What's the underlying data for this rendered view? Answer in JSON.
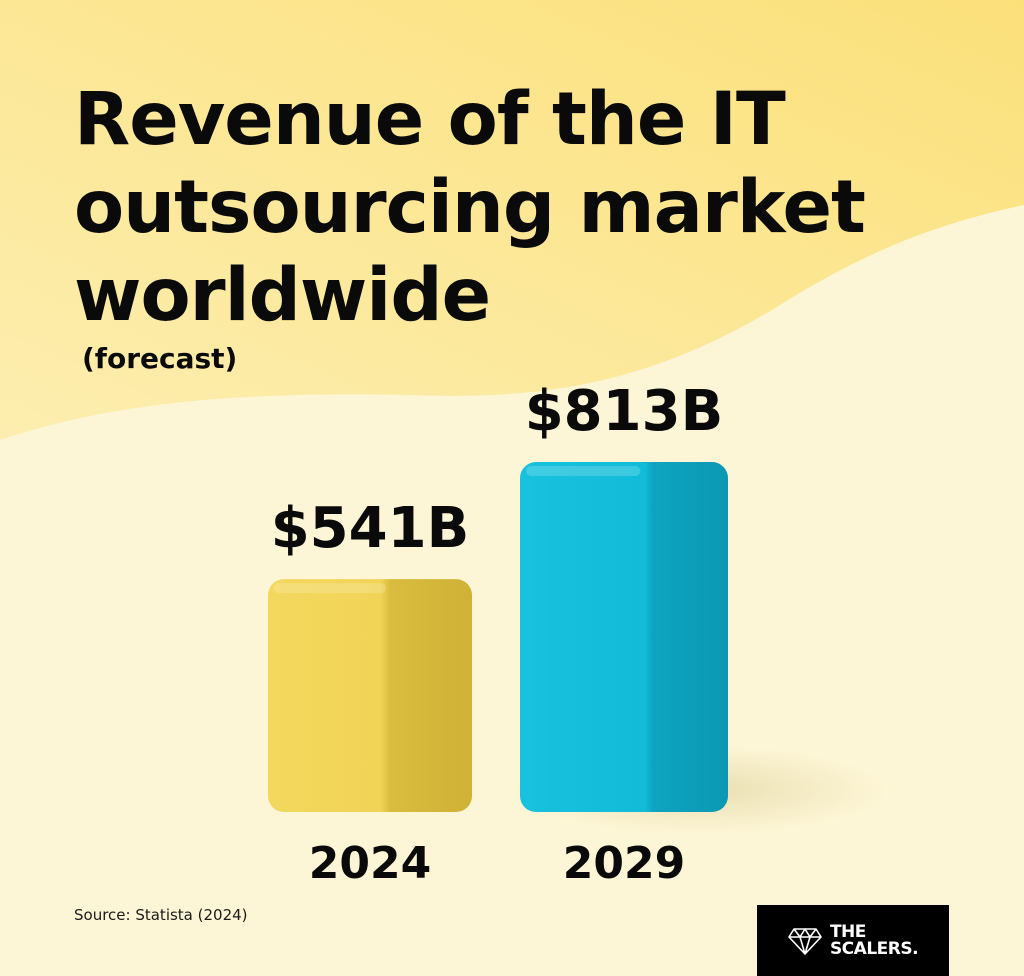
{
  "title": "Revenue of the IT outsourcing market worldwide",
  "subtitle": "(forecast)",
  "source": "Source: Statista (2024)",
  "logo": {
    "line1": "THE",
    "line2": "SCALERS."
  },
  "colors": {
    "background_light": "#fdf6d6",
    "background_yellow": "#fbe58c",
    "bar_2024": "#f1d456",
    "bar_2029": "#12bcd8"
  },
  "chart_data": {
    "type": "bar",
    "categories": [
      "2024",
      "2029"
    ],
    "values": [
      541,
      813
    ],
    "value_labels": [
      "$541B",
      "$813B"
    ],
    "ylabel": "",
    "xlabel": "",
    "grid": false,
    "legend": "none"
  }
}
